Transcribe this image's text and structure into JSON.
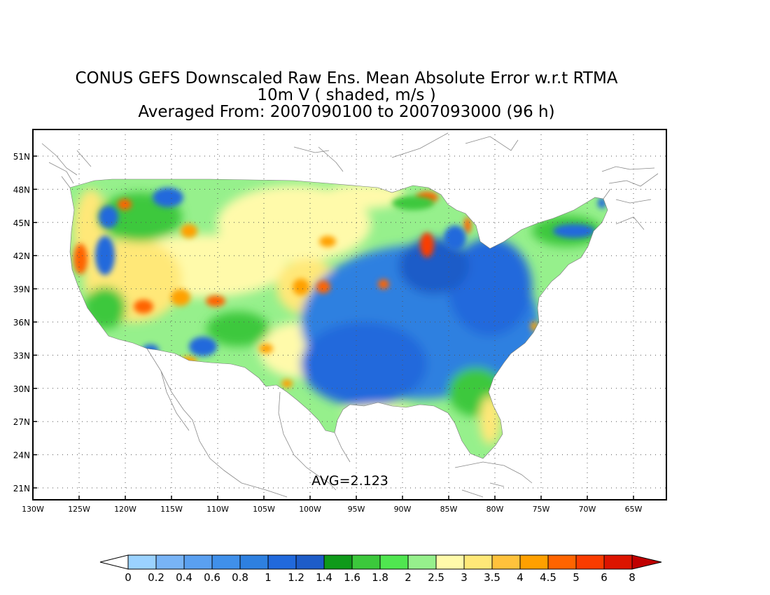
{
  "title": {
    "line1": "CONUS GEFS Downscaled Raw Ens. Mean Absolute Error w.r.t RTMA",
    "line2": "10m V ( shaded, m/s )",
    "line3": "Averaged From: 2007090100 to 2007093000 (96 h)"
  },
  "map": {
    "lat_ticks": [
      "51N",
      "48N",
      "45N",
      "42N",
      "39N",
      "36N",
      "33N",
      "30N",
      "27N",
      "24N",
      "21N"
    ],
    "lon_ticks": [
      "130W",
      "125W",
      "120W",
      "115W",
      "110W",
      "105W",
      "100W",
      "95W",
      "90W",
      "85W",
      "80W",
      "75W",
      "70W",
      "65W"
    ],
    "avg_label": "AVG=2.123"
  },
  "colorbar": {
    "labels": [
      "0",
      "0.2",
      "0.4",
      "0.6",
      "0.8",
      "1",
      "1.2",
      "1.4",
      "1.6",
      "1.8",
      "2",
      "2.5",
      "3",
      "3.5",
      "4",
      "4.5",
      "5",
      "6",
      "8"
    ],
    "colors": [
      "#9bd2ff",
      "#78b4f6",
      "#5aa0f0",
      "#4090ea",
      "#2e80e0",
      "#2169dc",
      "#1e5cc8",
      "#0f9a1a",
      "#3cc83c",
      "#50e650",
      "#96f08c",
      "#fffaaa",
      "#ffe878",
      "#ffc23c",
      "#ffa000",
      "#ff6400",
      "#fa3c00",
      "#dc1400",
      "#c00000"
    ]
  }
}
